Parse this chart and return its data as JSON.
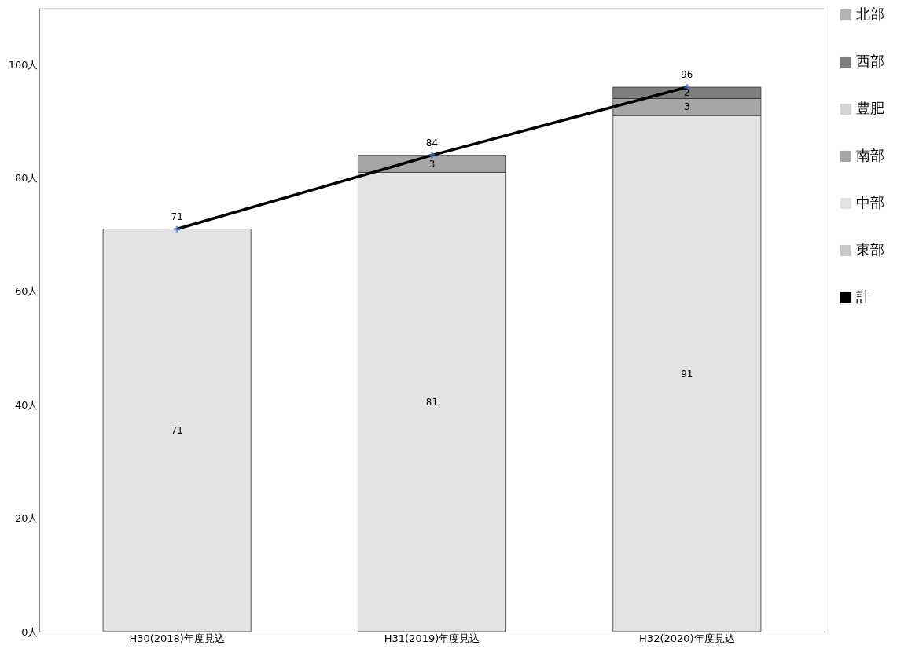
{
  "chart_data": {
    "type": "bar",
    "stacked": true,
    "categories": [
      "H30(2018)年度見込",
      "H31(2019)年度見込",
      "H32(2020)年度見込"
    ],
    "series": [
      {
        "name": "東部",
        "color": "#c8c8c8",
        "values": [
          0,
          0,
          0
        ],
        "value_labels": [
          null,
          null,
          null
        ]
      },
      {
        "name": "中部",
        "color": "#e3e3e3",
        "values": [
          71,
          81,
          91
        ],
        "value_labels": [
          "71",
          "81",
          "91"
        ]
      },
      {
        "name": "南部",
        "color": "#a6a6a6",
        "values": [
          0,
          3,
          3
        ],
        "value_labels": [
          null,
          "3",
          "3"
        ]
      },
      {
        "name": "豊肥",
        "color": "#d4d4d4",
        "values": [
          0,
          0,
          0
        ],
        "value_labels": [
          null,
          null,
          null
        ]
      },
      {
        "name": "西部",
        "color": "#7f7f7f",
        "values": [
          0,
          0,
          2
        ],
        "value_labels": [
          null,
          null,
          "2"
        ]
      },
      {
        "name": "北部",
        "color": "#b4b4b4",
        "values": [
          0,
          0,
          0
        ],
        "value_labels": [
          null,
          null,
          null
        ]
      },
      {
        "name": "計",
        "type": "line",
        "color": "#000000",
        "marker": "cross",
        "values": [
          71,
          84,
          96
        ],
        "value_labels": [
          "71",
          "84",
          "96"
        ]
      }
    ],
    "ylim": [
      0,
      110
    ],
    "yticks": [
      {
        "value": 0,
        "label": "0人"
      },
      {
        "value": 20,
        "label": "20人"
      },
      {
        "value": 40,
        "label": "40人"
      },
      {
        "value": 60,
        "label": "60人"
      },
      {
        "value": 80,
        "label": "80人"
      },
      {
        "value": 100,
        "label": "100人"
      }
    ],
    "grid": false,
    "legend": "right"
  }
}
